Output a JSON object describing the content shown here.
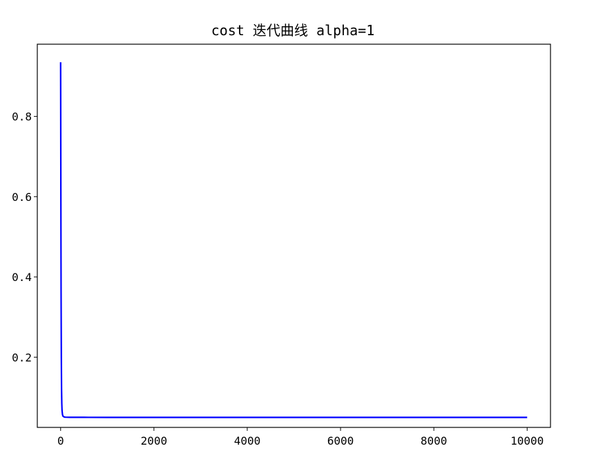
{
  "chart_data": {
    "type": "line",
    "title": "cost 迭代曲线   alpha=1",
    "xlabel": "",
    "ylabel": "",
    "xlim": [
      -500,
      10500
    ],
    "ylim": [
      0.025,
      0.98
    ],
    "grid": false,
    "line_color": "#0000ff",
    "x_ticks": [
      {
        "value": 0,
        "label": "0"
      },
      {
        "value": 2000,
        "label": "2000"
      },
      {
        "value": 4000,
        "label": "4000"
      },
      {
        "value": 6000,
        "label": "6000"
      },
      {
        "value": 8000,
        "label": "8000"
      },
      {
        "value": 10000,
        "label": "10000"
      }
    ],
    "y_ticks": [
      {
        "value": 0.2,
        "label": "0.2"
      },
      {
        "value": 0.4,
        "label": "0.4"
      },
      {
        "value": 0.6,
        "label": "0.6"
      },
      {
        "value": 0.8,
        "label": "0.8"
      }
    ],
    "series": [
      {
        "color": "#0000ff",
        "x": [
          0,
          5,
          10,
          15,
          20,
          25,
          30,
          40,
          50,
          75,
          100,
          200,
          500,
          1000,
          2000,
          5000,
          10000
        ],
        "y": [
          0.935,
          0.62,
          0.36,
          0.2,
          0.12,
          0.085,
          0.068,
          0.057,
          0.053,
          0.051,
          0.0505,
          0.0502,
          0.0501,
          0.05,
          0.05,
          0.05,
          0.05
        ]
      }
    ]
  }
}
